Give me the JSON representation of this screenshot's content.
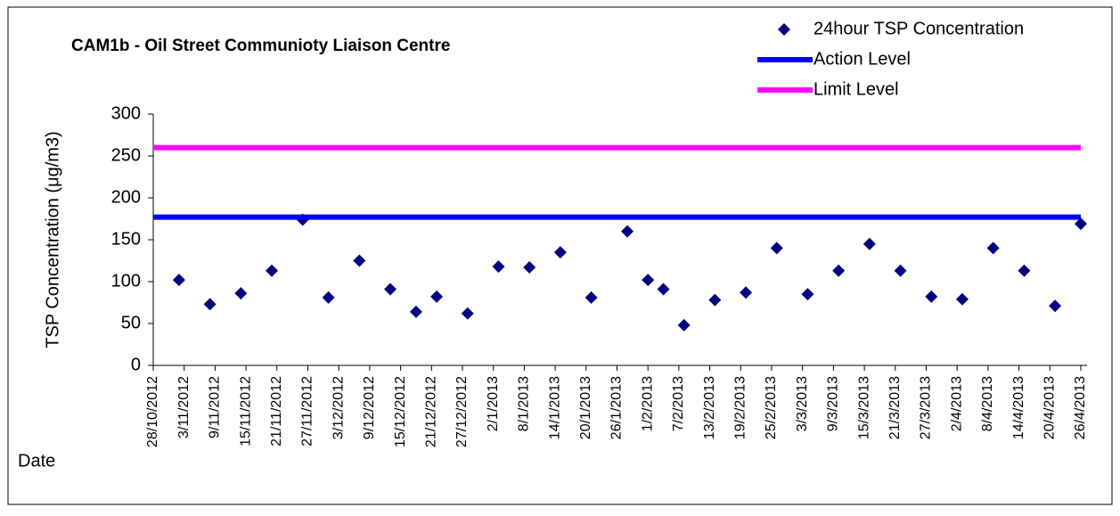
{
  "chart_data": {
    "type": "scatter",
    "title": "CAM1b - Oil Street Communioty Liaison Centre",
    "y_label": "TSP Concentration (μg/m3)",
    "x_label": "Date",
    "xlim": [
      "28/10/2012",
      "26/4/2013"
    ],
    "xticks": [
      "28/10/2012",
      "3/11/2012",
      "9/11/2012",
      "15/11/2012",
      "21/11/2012",
      "27/11/2012",
      "3/12/2012",
      "9/12/2012",
      "15/12/2012",
      "21/12/2012",
      "27/12/2012",
      "2/1/2013",
      "8/1/2013",
      "14/1/2013",
      "20/1/2013",
      "26/1/2013",
      "1/2/2013",
      "7/2/2013",
      "13/2/2013",
      "19/2/2013",
      "25/2/2013",
      "3/3/2013",
      "9/3/2013",
      "15/3/2013",
      "21/3/2013",
      "27/3/2013",
      "2/4/2013",
      "8/4/2013",
      "14/4/2013",
      "20/4/2013",
      "26/4/2013"
    ],
    "ylim": [
      0,
      300
    ],
    "yticks": [
      0,
      50,
      100,
      150,
      200,
      250,
      300
    ],
    "legend": "top-right",
    "series": [
      {
        "name": "24hour TSP Concentration",
        "color": "#000080",
        "x": [
          "2/11/2012",
          "8/11/2012",
          "14/11/2012",
          "20/11/2012",
          "26/11/2012",
          "1/12/2012",
          "7/12/2012",
          "13/12/2012",
          "18/12/2012",
          "22/12/2012",
          "28/12/2012",
          "3/1/2013",
          "9/1/2013",
          "15/1/2013",
          "21/1/2013",
          "28/1/2013",
          "1/2/2013",
          "4/2/2013",
          "8/2/2013",
          "14/2/2013",
          "20/2/2013",
          "26/2/2013",
          "4/3/2013",
          "10/3/2013",
          "16/3/2013",
          "22/3/2013",
          "28/3/2013",
          "3/4/2013",
          "9/4/2013",
          "15/4/2013",
          "21/4/2013",
          "26/4/2013"
        ],
        "values": [
          102,
          73,
          86,
          113,
          174,
          81,
          125,
          91,
          64,
          82,
          62,
          118,
          117,
          135,
          81,
          160,
          102,
          91,
          48,
          78,
          87,
          140,
          85,
          113,
          145,
          113,
          82,
          79,
          140,
          113,
          71,
          169
        ]
      },
      {
        "name": "Action Level",
        "color": "#0000ff",
        "x": [
          "28/10/2012",
          "26/4/2013"
        ],
        "values": [
          177,
          177
        ]
      },
      {
        "name": "Limit Level",
        "color": "#ff00ff",
        "x": [
          "28/10/2012",
          "26/4/2013"
        ],
        "values": [
          260,
          260
        ]
      }
    ]
  }
}
